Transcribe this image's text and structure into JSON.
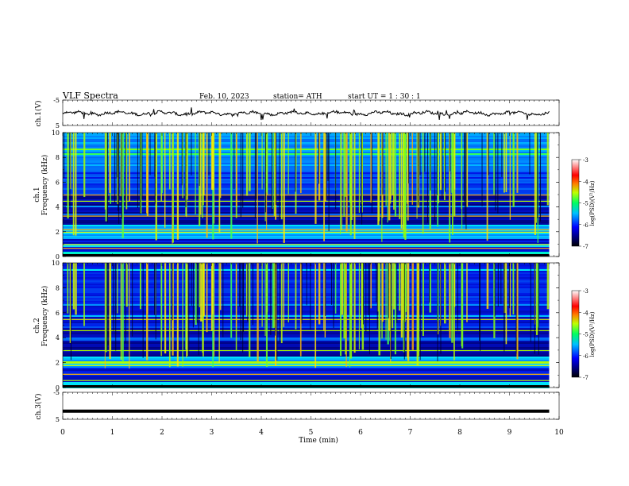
{
  "header": {
    "title": "VLF  Spectra",
    "date": "Feb. 10, 2023",
    "station": "station= ATH",
    "start_ut": "start  UT  =    1  : 30 : 1"
  },
  "chart_data": [
    {
      "id": "ch1-waveform",
      "type": "line",
      "ylabel": "ch.1(V)",
      "yticks": [
        "5",
        "-5"
      ],
      "ylim": [
        -5,
        5
      ],
      "xlim": [
        0,
        10
      ],
      "data_end_min": 9.8,
      "mean_value": -0.2,
      "color": "#000000"
    },
    {
      "id": "ch1-spectrogram",
      "type": "heatmap",
      "ylabel": "Frequency  (kHz)",
      "channel_label": "ch.1",
      "yticks": [
        "0",
        "2",
        "4",
        "6",
        "8",
        "10"
      ],
      "ylim": [
        0,
        10
      ],
      "xlim": [
        0,
        10
      ],
      "data_end_min": 9.8,
      "colorbar": {
        "label": "log(PSD)(V²/Hz)",
        "ticks": [
          "-3",
          "-4",
          "-5",
          "-6",
          "-7"
        ],
        "range": [
          -7,
          -3
        ]
      }
    },
    {
      "id": "ch2-spectrogram",
      "type": "heatmap",
      "ylabel": "Frequency  (kHz)",
      "channel_label": "ch.2",
      "yticks": [
        "0",
        "2",
        "4",
        "6",
        "8",
        "10"
      ],
      "ylim": [
        0,
        10
      ],
      "xlim": [
        0,
        10
      ],
      "data_end_min": 9.8,
      "colorbar": {
        "label": "log(PSD)(V²/Hz)",
        "ticks": [
          "-3",
          "-4",
          "-5",
          "-6",
          "-7"
        ],
        "range": [
          -7,
          -3
        ]
      }
    },
    {
      "id": "ch3-waveform",
      "type": "line",
      "ylabel": "ch.3(V)",
      "yticks": [
        "5",
        "-5"
      ],
      "ylim": [
        -5,
        5
      ],
      "xlim": [
        0,
        10
      ],
      "data_end_min": 9.8,
      "mean_value": -2.0,
      "color": "#000000"
    }
  ],
  "xaxis": {
    "label": "Time  (min)",
    "ticks": [
      "0",
      "1",
      "2",
      "3",
      "4",
      "5",
      "6",
      "7",
      "8",
      "9",
      "10"
    ],
    "range": [
      0,
      10
    ]
  },
  "colormap": [
    "#000000",
    "#00008b",
    "#0000ff",
    "#0080ff",
    "#00e0ff",
    "#00ff80",
    "#80ff00",
    "#ffff00",
    "#ff8000",
    "#ff0000",
    "#ffffff"
  ]
}
